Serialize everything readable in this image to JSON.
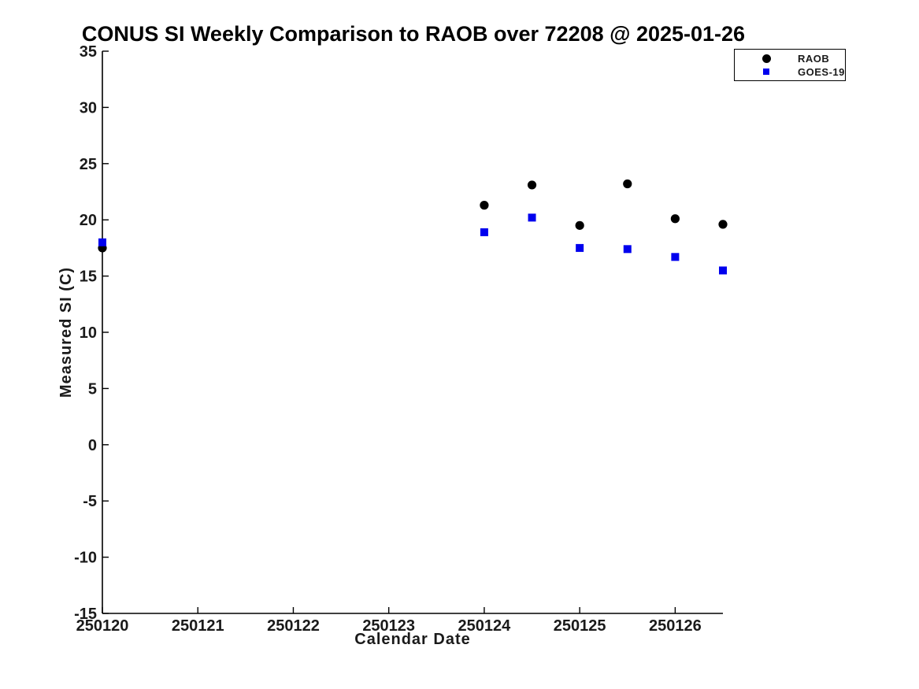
{
  "page": {
    "background": "#ffffff"
  },
  "chart_data": {
    "type": "scatter",
    "title": "CONUS SI Weekly Comparison to RAOB over 72208 @ 2025-01-26",
    "xlabel": "Calendar Date",
    "ylabel": "Measured SI (C)",
    "xlim": [
      250120,
      250126.5
    ],
    "ylim": [
      -15,
      35
    ],
    "x_ticks": [
      250120,
      250121,
      250122,
      250123,
      250124,
      250125,
      250126
    ],
    "x_tick_labels": [
      "250120",
      "250121",
      "250122",
      "250123",
      "250124",
      "250125",
      "250126"
    ],
    "y_ticks": [
      -15,
      -10,
      -5,
      0,
      5,
      10,
      15,
      20,
      25,
      30,
      35
    ],
    "y_tick_labels": [
      "-15",
      "-10",
      "-5",
      "0",
      "5",
      "10",
      "15",
      "20",
      "25",
      "30",
      "35"
    ],
    "grid": false,
    "legend": {
      "position": "top-right",
      "border_color": "#000000",
      "background": "#ffffff"
    },
    "series": [
      {
        "name": "RAOB",
        "marker": "circle",
        "color": "#000000",
        "x": [
          250120,
          250124,
          250124.5,
          250125,
          250125.5,
          250126,
          250126.5
        ],
        "y": [
          17.5,
          21.3,
          23.1,
          19.5,
          23.2,
          20.1,
          19.6
        ]
      },
      {
        "name": "GOES-19",
        "marker": "square",
        "color": "#0000ee",
        "x": [
          250120,
          250124,
          250124.5,
          250125,
          250125.5,
          250126,
          250126.5
        ],
        "y": [
          18.0,
          18.9,
          20.2,
          17.5,
          17.4,
          16.7,
          15.5
        ]
      }
    ],
    "colors": {
      "axis": "#000000",
      "tick_text": "#1a1a1a",
      "title_text": "#000000"
    }
  }
}
